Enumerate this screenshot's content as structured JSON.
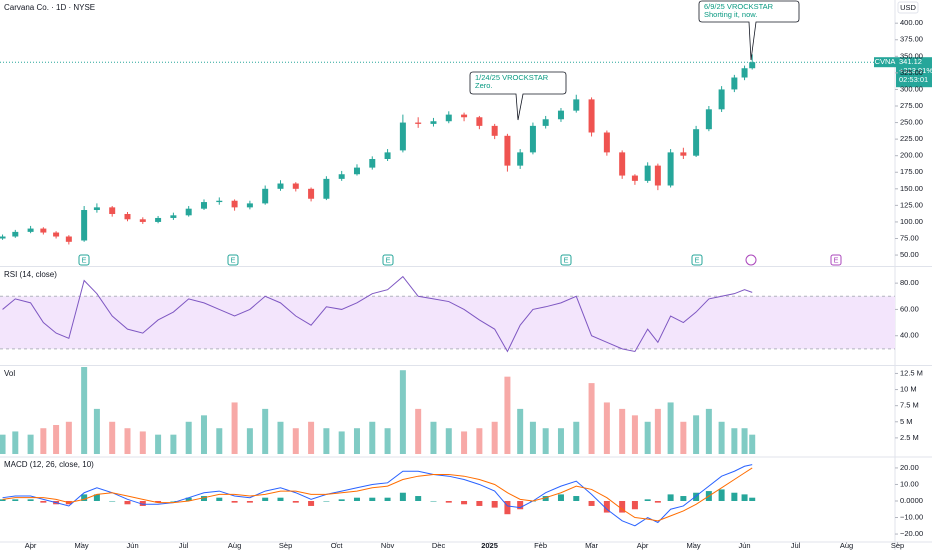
{
  "chart_data": [
    {
      "type": "candlestick",
      "title": "Carvana Co. · 1D · NYSE",
      "currency": "USD",
      "up_color": "#26a69a",
      "down_color": "#ef5350",
      "xlim": [
        -0.6,
        16.95
      ],
      "ylim": [
        35,
        435
      ],
      "yticks": [
        {
          "value": 50,
          "label": "50.00"
        },
        {
          "value": 75,
          "label": "75.00"
        },
        {
          "value": 100,
          "label": "100.00"
        },
        {
          "value": 125,
          "label": "125.00"
        },
        {
          "value": 150,
          "label": "150.00"
        },
        {
          "value": 175,
          "label": "175.00"
        },
        {
          "value": 200,
          "label": "200.00"
        },
        {
          "value": 225,
          "label": "225.00"
        },
        {
          "value": 250,
          "label": "250.00"
        },
        {
          "value": 275,
          "label": "275.00"
        },
        {
          "value": 300,
          "label": "300.00"
        },
        {
          "value": 325,
          "label": "325.00"
        },
        {
          "value": 350,
          "label": "350.00"
        },
        {
          "value": 375,
          "label": "375.00"
        },
        {
          "value": 400,
          "label": "400.00"
        }
      ],
      "x": [
        -0.55,
        -0.3,
        0,
        0.25,
        0.5,
        0.75,
        1.05,
        1.3,
        1.6,
        1.9,
        2.2,
        2.5,
        2.8,
        3.1,
        3.4,
        3.7,
        4.0,
        4.3,
        4.6,
        4.9,
        5.2,
        5.5,
        5.8,
        6.1,
        6.4,
        6.7,
        7.0,
        7.3,
        7.6,
        7.9,
        8.2,
        8.5,
        8.8,
        9.1,
        9.35,
        9.6,
        9.85,
        10.1,
        10.4,
        10.7,
        11.0,
        11.3,
        11.6,
        11.85,
        12.1,
        12.3,
        12.55,
        12.8,
        13.05,
        13.3,
        13.55,
        13.8,
        14.0,
        14.15
      ],
      "open": [
        75,
        78,
        85,
        90,
        84,
        78,
        72,
        118,
        122,
        112,
        104,
        100,
        106,
        110,
        120,
        130,
        132,
        122,
        128,
        150,
        158,
        150,
        135,
        165,
        172,
        182,
        195,
        208,
        250,
        248,
        252,
        262,
        258,
        245,
        230,
        185,
        205,
        245,
        255,
        268,
        285,
        235,
        205,
        170,
        162,
        185,
        155,
        205,
        200,
        240,
        270,
        300,
        318,
        332
      ],
      "high": [
        81,
        88,
        94,
        92,
        86,
        80,
        124,
        128,
        124,
        115,
        107,
        109,
        114,
        124,
        134,
        137,
        134,
        132,
        155,
        163,
        160,
        152,
        169,
        177,
        187,
        199,
        210,
        262,
        258,
        257,
        267,
        265,
        260,
        248,
        233,
        210,
        250,
        260,
        272,
        292,
        288,
        238,
        208,
        172,
        190,
        188,
        210,
        212,
        245,
        275,
        305,
        322,
        336,
        353
      ],
      "low": [
        73,
        76,
        83,
        81,
        75,
        66,
        70,
        114,
        108,
        101,
        97,
        98,
        103,
        108,
        118,
        126,
        117,
        119,
        126,
        147,
        146,
        131,
        133,
        162,
        170,
        179,
        192,
        205,
        242,
        244,
        249,
        252,
        240,
        225,
        176,
        180,
        202,
        241,
        251,
        265,
        229,
        200,
        165,
        156,
        159,
        148,
        152,
        195,
        198,
        237,
        266,
        296,
        314,
        330
      ],
      "close": [
        78,
        85,
        90,
        84,
        78,
        70,
        118,
        122,
        112,
        104,
        100,
        106,
        110,
        120,
        130,
        132,
        122,
        128,
        150,
        158,
        150,
        135,
        165,
        172,
        182,
        195,
        205,
        250,
        248,
        252,
        262,
        258,
        245,
        230,
        185,
        205,
        245,
        255,
        268,
        285,
        235,
        205,
        170,
        162,
        185,
        155,
        205,
        200,
        240,
        270,
        300,
        318,
        332,
        341.12
      ],
      "last_price": {
        "symbol": "CVNA",
        "value": 341.12,
        "change": "+323.91%",
        "countdown": "02:53:01"
      },
      "earnings_label": "E",
      "annotations": [
        [
          "1/24/25 VROCKSTAR",
          "Zero."
        ],
        [
          "6/9/25 VROCKSTAR",
          "Shorting it, now."
        ]
      ]
    },
    {
      "type": "line",
      "title": "RSI (14, close)",
      "color": "#7e57c2",
      "band": [
        30,
        70
      ],
      "band_color": "#f3e5fc",
      "xlim": [
        -0.6,
        16.95
      ],
      "ylim": [
        20,
        90
      ],
      "yticks": [
        {
          "value": 40,
          "label": "40.00"
        },
        {
          "value": 60,
          "label": "60.00"
        },
        {
          "value": 80,
          "label": "80.00"
        }
      ],
      "x": [
        -0.55,
        -0.3,
        0,
        0.25,
        0.5,
        0.75,
        1.05,
        1.3,
        1.6,
        1.9,
        2.2,
        2.5,
        2.8,
        3.1,
        3.4,
        3.7,
        4.0,
        4.3,
        4.6,
        4.9,
        5.2,
        5.5,
        5.8,
        6.1,
        6.4,
        6.7,
        7.0,
        7.3,
        7.6,
        7.9,
        8.2,
        8.5,
        8.8,
        9.1,
        9.35,
        9.6,
        9.85,
        10.1,
        10.4,
        10.7,
        11.0,
        11.3,
        11.6,
        11.85,
        12.1,
        12.3,
        12.55,
        12.8,
        13.05,
        13.3,
        13.55,
        13.8,
        14.0,
        14.15
      ],
      "values": [
        60,
        68,
        65,
        50,
        42,
        38,
        82,
        72,
        55,
        45,
        42,
        52,
        58,
        68,
        65,
        60,
        55,
        60,
        70,
        65,
        55,
        48,
        62,
        60,
        65,
        72,
        75,
        85,
        70,
        68,
        66,
        60,
        52,
        45,
        28,
        48,
        60,
        62,
        65,
        70,
        40,
        35,
        30,
        28,
        45,
        35,
        55,
        50,
        58,
        68,
        70,
        72,
        75,
        73
      ]
    },
    {
      "type": "bar",
      "title": "Vol",
      "up_color": "#80cbc4",
      "down_color": "#f7a9a7",
      "xlim": [
        -0.6,
        16.95
      ],
      "ylim": [
        0,
        13.5
      ],
      "yticks": [
        {
          "value": 2.5,
          "label": "2.5 M"
        },
        {
          "value": 5,
          "label": "5 M"
        },
        {
          "value": 7.5,
          "label": "7.5 M"
        },
        {
          "value": 10,
          "label": "10 M"
        },
        {
          "value": 12.5,
          "label": "12.5 M"
        }
      ],
      "x": [
        -0.55,
        -0.3,
        0,
        0.25,
        0.5,
        0.75,
        1.05,
        1.3,
        1.6,
        1.9,
        2.2,
        2.5,
        2.8,
        3.1,
        3.4,
        3.7,
        4.0,
        4.3,
        4.6,
        4.9,
        5.2,
        5.5,
        5.8,
        6.1,
        6.4,
        6.7,
        7.0,
        7.3,
        7.6,
        7.9,
        8.2,
        8.5,
        8.8,
        9.1,
        9.35,
        9.6,
        9.85,
        10.1,
        10.4,
        10.7,
        11.0,
        11.3,
        11.6,
        11.85,
        12.1,
        12.3,
        12.55,
        12.8,
        13.05,
        13.3,
        13.55,
        13.8,
        14.0,
        14.15
      ],
      "values": [
        3,
        3.5,
        3,
        4,
        4.5,
        5,
        14,
        7,
        5,
        4,
        3.5,
        3,
        3,
        5,
        6,
        4,
        8,
        4,
        7,
        5,
        4,
        5,
        4,
        3.5,
        4,
        5,
        4,
        13,
        7,
        5,
        4,
        3.5,
        4,
        5,
        12,
        7,
        5,
        4,
        4,
        5,
        11,
        8,
        7,
        6,
        5,
        7,
        8,
        5,
        6,
        7,
        5,
        4,
        4,
        3
      ]
    },
    {
      "type": "macd",
      "title": "MACD (12, 26, close, 10)",
      "xlim": [
        -0.6,
        16.95
      ],
      "ylim": [
        -23.6,
        24.8
      ],
      "yticks": [
        {
          "value": -20,
          "label": "−20.00"
        },
        {
          "value": -10,
          "label": "−10.00"
        },
        {
          "value": 0,
          "label": "0.0000"
        },
        {
          "value": 10,
          "label": "10.00"
        },
        {
          "value": 20,
          "label": "20.00"
        }
      ],
      "xticks": [
        {
          "value": 0,
          "label": "Apr"
        },
        {
          "value": 1,
          "label": "May"
        },
        {
          "value": 2,
          "label": "Jun"
        },
        {
          "value": 3,
          "label": "Jul"
        },
        {
          "value": 4,
          "label": "Aug"
        },
        {
          "value": 5,
          "label": "Sep"
        },
        {
          "value": 6,
          "label": "Oct"
        },
        {
          "value": 7,
          "label": "Nov"
        },
        {
          "value": 8,
          "label": "Dec"
        },
        {
          "value": 9,
          "label": "2025"
        },
        {
          "value": 10,
          "label": "Feb"
        },
        {
          "value": 11,
          "label": "Mar"
        },
        {
          "value": 12,
          "label": "Apr"
        },
        {
          "value": 13,
          "label": "May"
        },
        {
          "value": 14,
          "label": "Jun"
        },
        {
          "value": 15,
          "label": "Jul"
        },
        {
          "value": 16,
          "label": "Aug"
        },
        {
          "value": 17,
          "label": "Sep"
        }
      ],
      "x": [
        -0.55,
        -0.3,
        0,
        0.25,
        0.5,
        0.75,
        1.05,
        1.3,
        1.6,
        1.9,
        2.2,
        2.5,
        2.8,
        3.1,
        3.4,
        3.7,
        4.0,
        4.3,
        4.6,
        4.9,
        5.2,
        5.5,
        5.8,
        6.1,
        6.4,
        6.7,
        7.0,
        7.3,
        7.6,
        7.9,
        8.2,
        8.5,
        8.8,
        9.1,
        9.35,
        9.6,
        9.85,
        10.1,
        10.4,
        10.7,
        11.0,
        11.3,
        11.6,
        11.85,
        12.1,
        12.3,
        12.55,
        12.8,
        13.05,
        13.3,
        13.55,
        13.8,
        14.0,
        14.15
      ],
      "series": [
        {
          "name": "MACD",
          "color": "#2962ff",
          "values": [
            2,
            3,
            3,
            1,
            -1,
            -3,
            5,
            8,
            5,
            1,
            -2,
            -2,
            -1,
            2,
            5,
            6,
            3,
            2,
            6,
            8,
            5,
            1,
            4,
            6,
            8,
            10,
            11,
            18,
            18,
            16,
            15,
            13,
            10,
            6,
            -3,
            -4,
            0,
            5,
            9,
            12,
            4,
            -5,
            -12,
            -15,
            -10,
            -13,
            -5,
            -3,
            3,
            9,
            15,
            18,
            21,
            22
          ]
        },
        {
          "name": "Signal",
          "color": "#ff6d00",
          "values": [
            1,
            2,
            2,
            2,
            1,
            -1,
            1,
            4,
            5,
            3,
            1,
            -1,
            -1,
            0,
            2,
            4,
            4,
            3,
            4,
            6,
            6,
            4,
            4,
            5,
            6,
            8,
            9,
            13,
            15,
            16,
            16,
            15,
            13,
            10,
            5,
            1,
            0,
            2,
            5,
            9,
            7,
            2,
            -5,
            -10,
            -11,
            -12,
            -9,
            -6,
            -2,
            3,
            8,
            13,
            17,
            20
          ]
        },
        {
          "name": "Histogram",
          "up_color": "#26a69a",
          "down_color": "#ef5350",
          "values": [
            1,
            1,
            1,
            -1,
            -2,
            -2,
            4,
            4,
            0,
            -2,
            -3,
            -1,
            0,
            2,
            3,
            2,
            -1,
            -1,
            2,
            2,
            -1,
            -3,
            0,
            1,
            2,
            2,
            2,
            5,
            3,
            0,
            -1,
            -2,
            -3,
            -4,
            -8,
            -5,
            0,
            3,
            4,
            3,
            -3,
            -7,
            -7,
            -5,
            1,
            -1,
            4,
            3,
            5,
            6,
            7,
            5,
            4,
            2
          ]
        }
      ]
    }
  ]
}
